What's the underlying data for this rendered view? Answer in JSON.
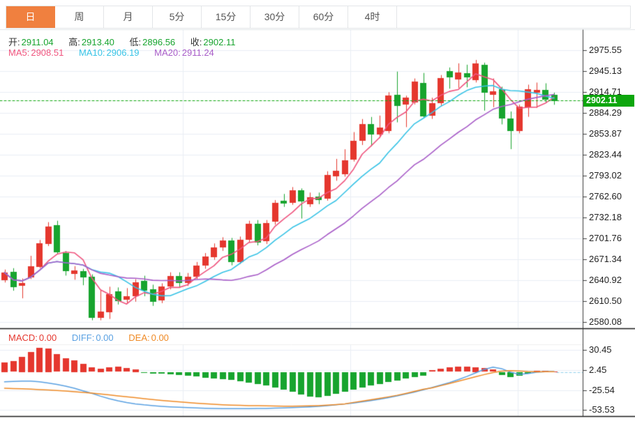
{
  "tabs": {
    "items": [
      {
        "label": "日",
        "active": true
      },
      {
        "label": "周",
        "active": false
      },
      {
        "label": "月",
        "active": false
      },
      {
        "label": "5分",
        "active": false
      },
      {
        "label": "15分",
        "active": false
      },
      {
        "label": "30分",
        "active": false
      },
      {
        "label": "60分",
        "active": false
      },
      {
        "label": "4时",
        "active": false
      }
    ]
  },
  "legend": {
    "open_label": "开:",
    "open": "2911.04",
    "high_label": "高:",
    "high": "2913.40",
    "low_label": "低:",
    "low": "2896.56",
    "close_label": "收:",
    "close": "2902.11",
    "ma5_label": "MA5:",
    "ma5": "2908.51",
    "ma10_label": "MA10:",
    "ma10": "2906.19",
    "ma20_label": "MA20:",
    "ma20": "2911.24"
  },
  "macd_legend": {
    "macd_label": "MACD:",
    "macd": "0.00",
    "diff_label": "DIFF:",
    "diff": "0.00",
    "dea_label": "DEA:",
    "dea": "0.00"
  },
  "price_axis": {
    "current": "2902.11"
  },
  "colors": {
    "up": "#e5372e",
    "down": "#17a42e",
    "ma5": "#f0547e",
    "ma10": "#36c3e6",
    "ma20": "#a85cc8",
    "diff": "#59a0e2",
    "dea": "#ef8a25",
    "tag": "#0da60d",
    "dotted": "#0da60d",
    "grid": "#e9eef5",
    "axis": "#3a3a3a",
    "separator": "#1a1a1a",
    "accent": "#f0803f",
    "zero_dash": "#8fd0ec"
  },
  "chart_data": {
    "type": "candlestick",
    "timeframe": "日",
    "title": "",
    "legend_position": "top-left",
    "grid": true,
    "price_ticks": [
      2975.55,
      2945.13,
      2914.71,
      2884.29,
      2853.87,
      2823.44,
      2793.02,
      2762.6,
      2732.18,
      2701.76,
      2671.34,
      2640.92,
      2610.5,
      2580.08
    ],
    "current_price": 2902.11,
    "last_ohlc": {
      "open": 2911.04,
      "high": 2913.4,
      "low": 2896.56,
      "close": 2902.11
    },
    "ma_values": {
      "ma5": 2908.51,
      "ma10": 2906.19,
      "ma20": 2911.24
    },
    "ma_periods": [
      5,
      10,
      20
    ],
    "candles_format": [
      "open",
      "high",
      "low",
      "close"
    ],
    "candles": [
      [
        2641,
        2656,
        2638,
        2652
      ],
      [
        2653,
        2658,
        2626,
        2631
      ],
      [
        2633,
        2643,
        2615,
        2637
      ],
      [
        2645,
        2676,
        2643,
        2661
      ],
      [
        2661,
        2699,
        2659,
        2695
      ],
      [
        2694,
        2725,
        2691,
        2719
      ],
      [
        2721,
        2727,
        2679,
        2681
      ],
      [
        2680,
        2683,
        2648,
        2654
      ],
      [
        2650,
        2661,
        2642,
        2655
      ],
      [
        2654,
        2657,
        2634,
        2645
      ],
      [
        2646,
        2649,
        2583,
        2586
      ],
      [
        2586,
        2626,
        2583,
        2595
      ],
      [
        2595,
        2631,
        2585,
        2621
      ],
      [
        2625,
        2630,
        2606,
        2611
      ],
      [
        2613,
        2629,
        2607,
        2618
      ],
      [
        2618,
        2642,
        2610,
        2638
      ],
      [
        2640,
        2647,
        2618,
        2626
      ],
      [
        2628,
        2634,
        2604,
        2610
      ],
      [
        2612,
        2636,
        2608,
        2632
      ],
      [
        2632,
        2652,
        2628,
        2647
      ],
      [
        2647,
        2652,
        2630,
        2637
      ],
      [
        2637,
        2651,
        2633,
        2646
      ],
      [
        2646,
        2667,
        2643,
        2662
      ],
      [
        2662,
        2680,
        2658,
        2675
      ],
      [
        2675,
        2694,
        2671,
        2689
      ],
      [
        2689,
        2703,
        2684,
        2699
      ],
      [
        2699,
        2702,
        2663,
        2668
      ],
      [
        2668,
        2704,
        2665,
        2700
      ],
      [
        2700,
        2727,
        2696,
        2723
      ],
      [
        2723,
        2728,
        2692,
        2696
      ],
      [
        2698,
        2728,
        2694,
        2724
      ],
      [
        2726,
        2757,
        2722,
        2753
      ],
      [
        2757,
        2766,
        2748,
        2753
      ],
      [
        2754,
        2776,
        2751,
        2772
      ],
      [
        2772,
        2774,
        2731,
        2756
      ],
      [
        2752,
        2768,
        2748,
        2762
      ],
      [
        2763,
        2768,
        2752,
        2758
      ],
      [
        2760,
        2799,
        2757,
        2794
      ],
      [
        2792,
        2817,
        2786,
        2800
      ],
      [
        2795,
        2831,
        2792,
        2815
      ],
      [
        2817,
        2856,
        2814,
        2844
      ],
      [
        2844,
        2875,
        2838,
        2868
      ],
      [
        2868,
        2878,
        2836,
        2853
      ],
      [
        2853,
        2880,
        2848,
        2863
      ],
      [
        2858,
        2914,
        2855,
        2910
      ],
      [
        2911,
        2944,
        2871,
        2895
      ],
      [
        2897,
        2909,
        2864,
        2907
      ],
      [
        2900,
        2934,
        2897,
        2930
      ],
      [
        2928,
        2942,
        2877,
        2879
      ],
      [
        2880,
        2906,
        2876,
        2898
      ],
      [
        2898,
        2939,
        2895,
        2935
      ],
      [
        2945,
        2950,
        2920,
        2936
      ],
      [
        2933,
        2956,
        2921,
        2943
      ],
      [
        2942,
        2954,
        2922,
        2936
      ],
      [
        2932,
        2961,
        2929,
        2956
      ],
      [
        2954,
        2957,
        2888,
        2913
      ],
      [
        2911,
        2934,
        2893,
        2916
      ],
      [
        2919,
        2922,
        2868,
        2876
      ],
      [
        2876,
        2886,
        2832,
        2858
      ],
      [
        2858,
        2896,
        2855,
        2893
      ],
      [
        2893,
        2925,
        2879,
        2919
      ],
      [
        2914,
        2928,
        2892,
        2918
      ],
      [
        2918,
        2927,
        2899,
        2904
      ],
      [
        2911.04,
        2913.4,
        2896.56,
        2902.11
      ]
    ],
    "macd": {
      "ticks": [
        30.45,
        2.45,
        -25.54,
        -53.53
      ],
      "macd_now": 0.0,
      "diff_now": 0.0,
      "dea_now": 0.0,
      "hist": [
        13.5,
        15,
        21,
        28,
        34,
        33,
        24.5,
        19,
        16.5,
        11.5,
        6,
        4.5,
        6,
        7,
        5,
        3.5,
        -1,
        -2,
        -1.5,
        -2.5,
        -3.5,
        -4.5,
        -6,
        -7.5,
        -8.5,
        -9.5,
        -11,
        -12.5,
        -14.5,
        -17,
        -19,
        -21.5,
        -24,
        -27,
        -31,
        -34,
        -35,
        -33,
        -30,
        -27,
        -24,
        -21.5,
        -19,
        -16.5,
        -14,
        -11.5,
        -9,
        -7,
        -4.5,
        2,
        4,
        6,
        7,
        7,
        6.5,
        5,
        3,
        -4,
        -6.5,
        -5,
        -2,
        1.5,
        1,
        0.5
      ],
      "diff": [
        -14,
        -13.5,
        -13,
        -13,
        -14,
        -15.5,
        -17.5,
        -20,
        -23,
        -26.5,
        -30,
        -34,
        -37.5,
        -40.5,
        -43,
        -44.8,
        -46.2,
        -47.3,
        -48.2,
        -49,
        -49.6,
        -50.1,
        -50.5,
        -50.9,
        -51.2,
        -51.4,
        -51.5,
        -51.5,
        -51.4,
        -51.3,
        -51.1,
        -50.8,
        -50.5,
        -50.1,
        -49.6,
        -49,
        -48.2,
        -47.3,
        -46.2,
        -45,
        -43.6,
        -42,
        -40.2,
        -38.2,
        -36,
        -33.6,
        -31,
        -28.2,
        -25.2,
        -22,
        -18.6,
        -15,
        -11,
        -6.5,
        -1.5,
        3.5,
        6.5,
        4.5,
        -0.5,
        -3.5,
        -2.5,
        -0.5,
        0.3,
        0.3
      ],
      "dea": [
        -23,
        -23.3,
        -23.7,
        -24.2,
        -24.8,
        -25.4,
        -26,
        -26.8,
        -27.7,
        -28.7,
        -29.8,
        -31,
        -32.3,
        -33.6,
        -34.9,
        -36.2,
        -37.5,
        -38.7,
        -39.9,
        -41,
        -42,
        -43,
        -43.9,
        -44.7,
        -45.4,
        -46,
        -46.5,
        -46.9,
        -47.2,
        -47.4,
        -47.5,
        -47.8,
        -48,
        -48,
        -47.9,
        -47.6,
        -47.2,
        -46.6,
        -45.8,
        -44.8,
        -42.8,
        -41,
        -39,
        -37,
        -35,
        -32.8,
        -30.2,
        -27.4,
        -24.4,
        -22.4,
        -19.4,
        -16.4,
        -13.2,
        -10,
        -6.8,
        -3.8,
        -1,
        1,
        1.8,
        1.2,
        0.4,
        0,
        0.2,
        0.2
      ]
    }
  }
}
